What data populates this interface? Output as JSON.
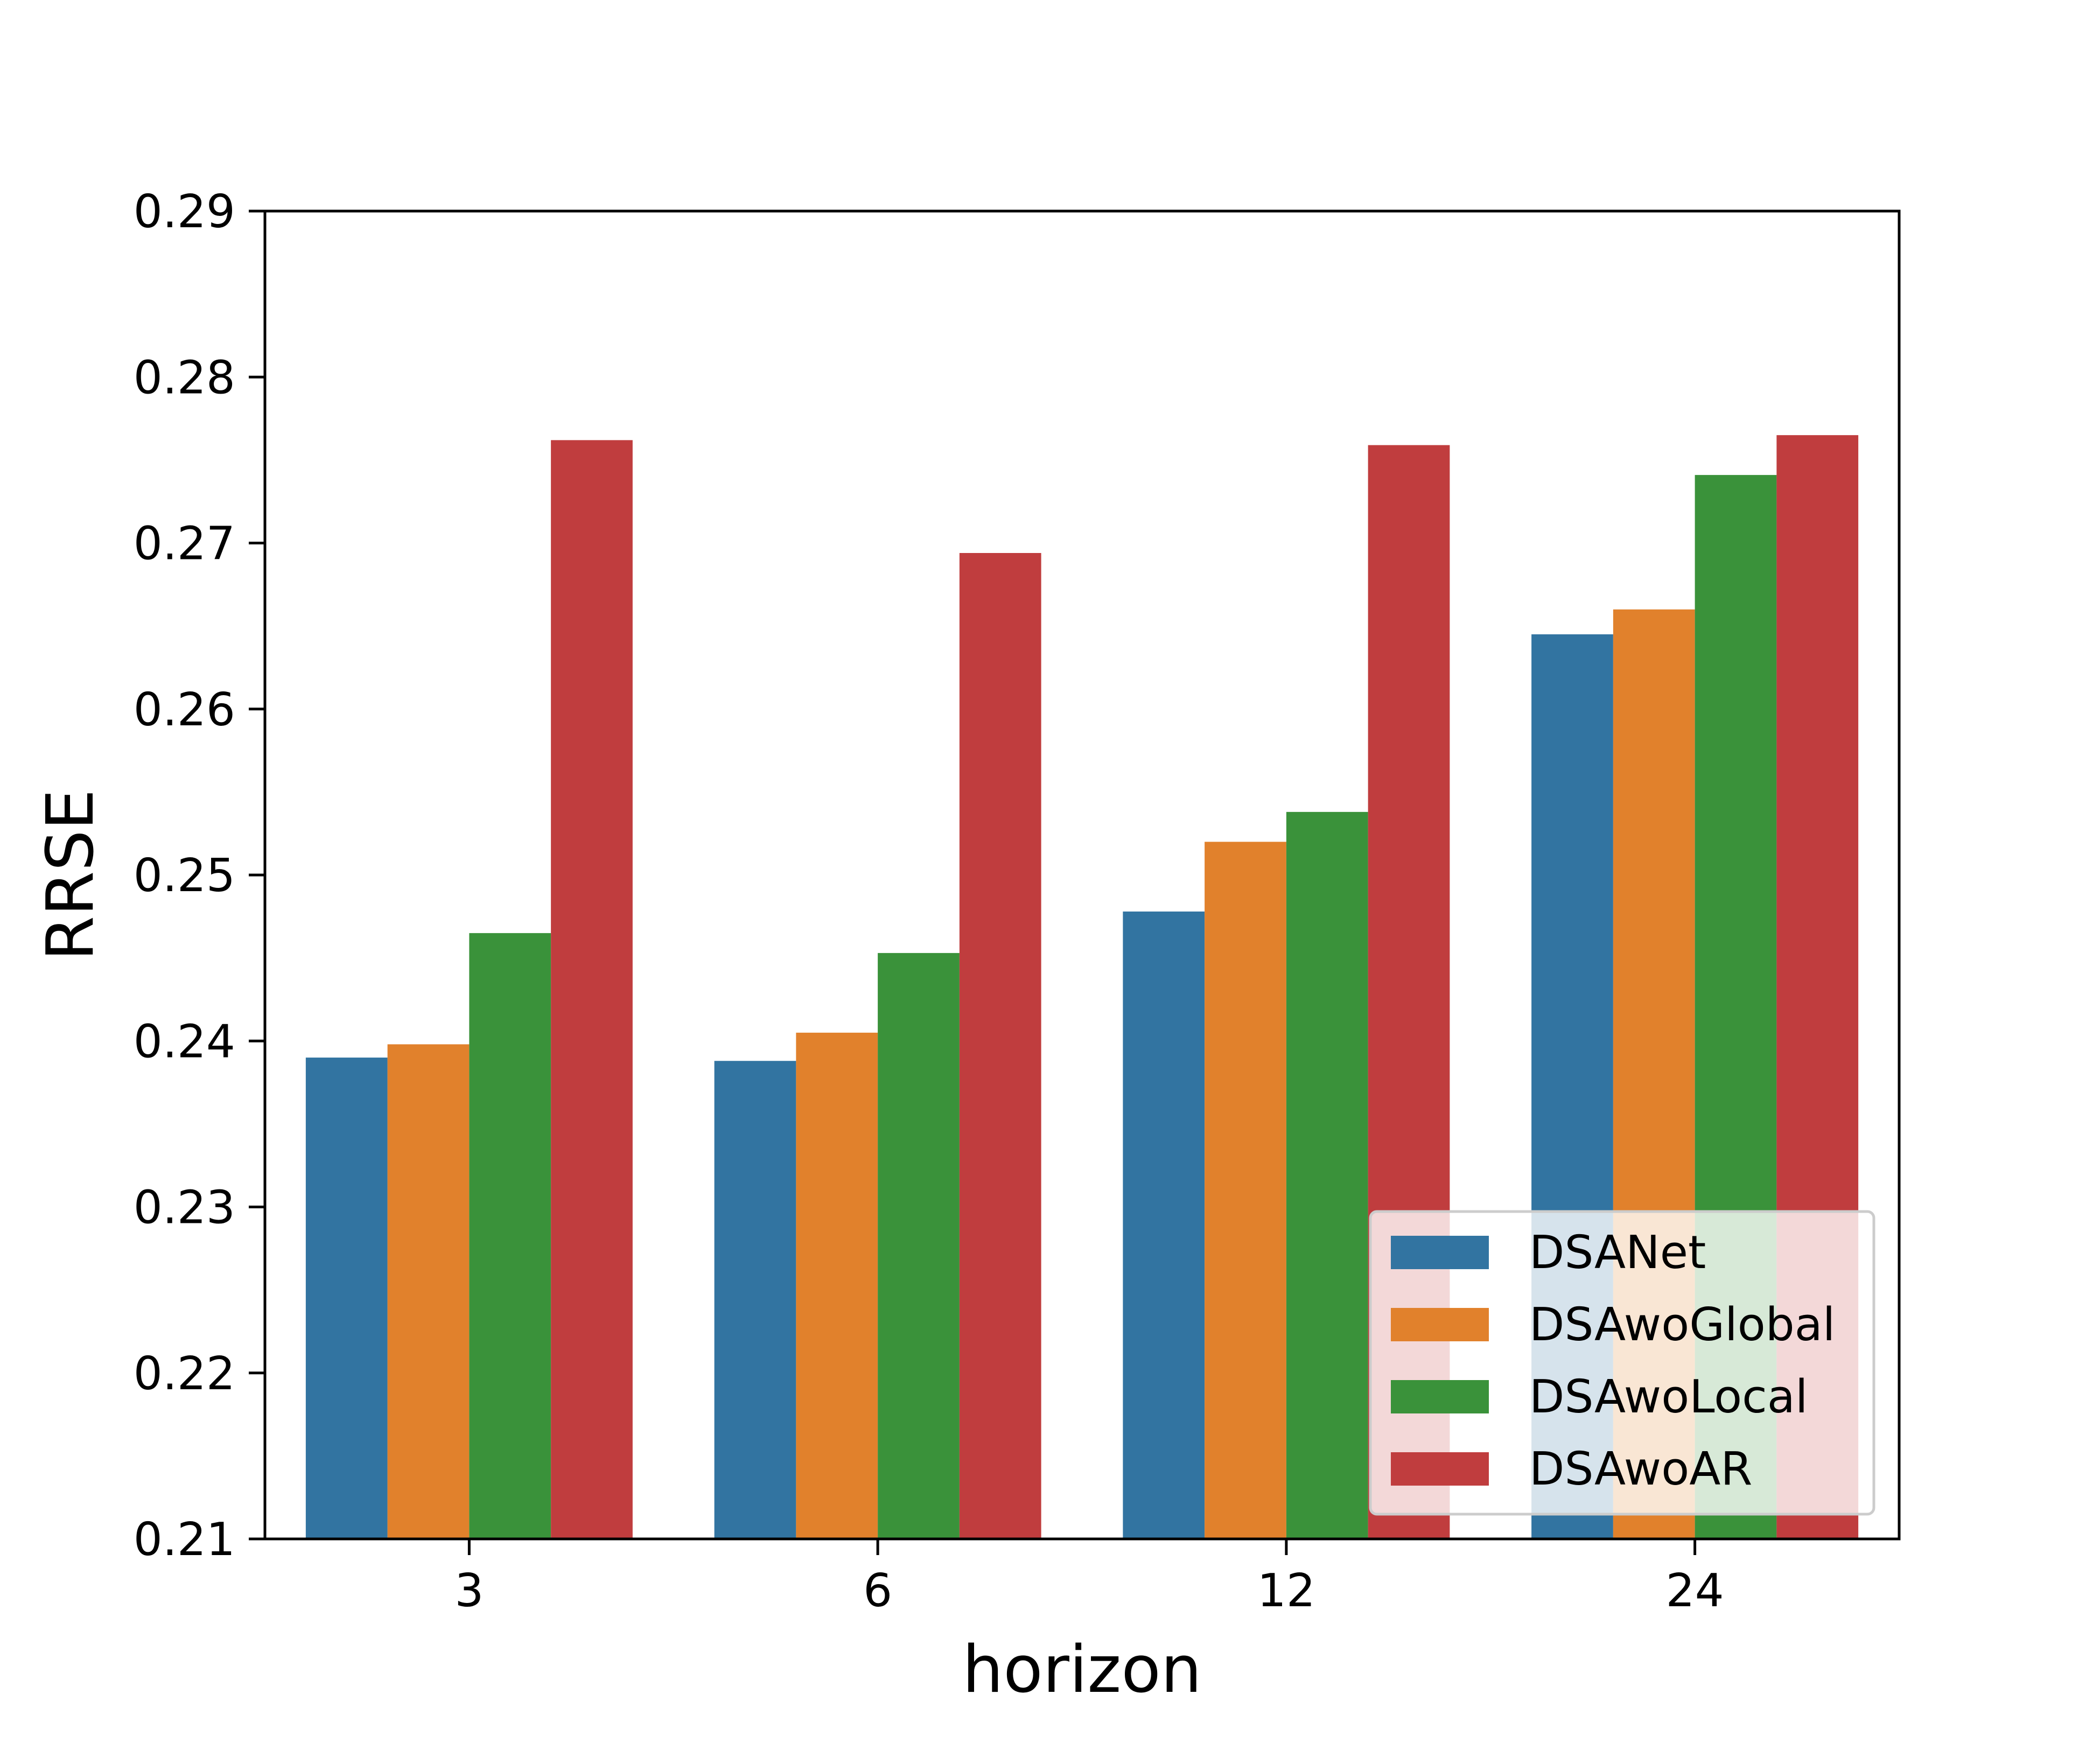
{
  "chart_data": {
    "type": "bar",
    "xlabel": "horizon",
    "ylabel": "RRSE",
    "categories": [
      "3",
      "6",
      "12",
      "24"
    ],
    "series": [
      {
        "name": "DSANet",
        "color": "#3274a1",
        "values": [
          0.239,
          0.2388,
          0.2478,
          0.2645
        ]
      },
      {
        "name": "DSAwoGlobal",
        "color": "#e1812c",
        "values": [
          0.2398,
          0.2405,
          0.252,
          0.266
        ]
      },
      {
        "name": "DSAwoLocal",
        "color": "#3a923a",
        "values": [
          0.2465,
          0.2453,
          0.2538,
          0.2741
        ]
      },
      {
        "name": "DSAwoAR",
        "color": "#c03d3e",
        "values": [
          0.2762,
          0.2694,
          0.2759,
          0.2765
        ]
      }
    ],
    "ylim": [
      0.21,
      0.29
    ],
    "yticks": [
      "0.21",
      "0.22",
      "0.23",
      "0.24",
      "0.25",
      "0.26",
      "0.27",
      "0.28",
      "0.29"
    ],
    "grid": false,
    "legend_position": "lower-right"
  }
}
